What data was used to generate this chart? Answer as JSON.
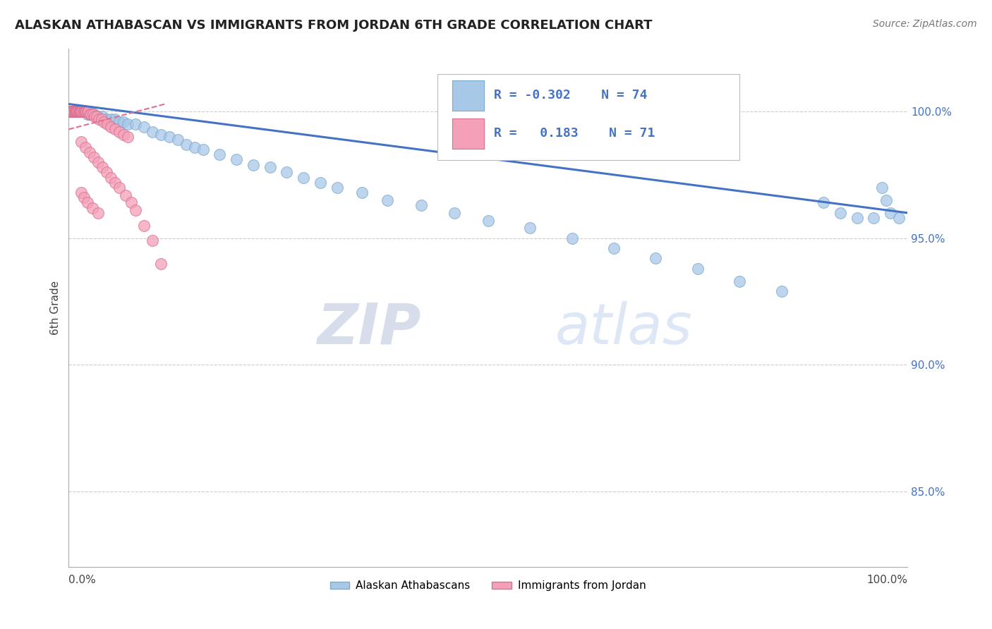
{
  "title": "ALASKAN ATHABASCAN VS IMMIGRANTS FROM JORDAN 6TH GRADE CORRELATION CHART",
  "source": "Source: ZipAtlas.com",
  "ylabel": "6th Grade",
  "ytick_labels": [
    "85.0%",
    "90.0%",
    "95.0%",
    "100.0%"
  ],
  "ytick_values": [
    0.85,
    0.9,
    0.95,
    1.0
  ],
  "xlim": [
    0.0,
    1.0
  ],
  "ylim": [
    0.82,
    1.025
  ],
  "legend_entries": [
    {
      "label": "Alaskan Athabascans",
      "color": "#a8c8e8"
    },
    {
      "label": "Immigrants from Jordan",
      "color": "#f4a0b8"
    }
  ],
  "blue_scatter_x": [
    0.001,
    0.002,
    0.003,
    0.003,
    0.004,
    0.004,
    0.005,
    0.005,
    0.006,
    0.006,
    0.007,
    0.007,
    0.008,
    0.008,
    0.009,
    0.01,
    0.01,
    0.011,
    0.012,
    0.013,
    0.014,
    0.015,
    0.016,
    0.018,
    0.02,
    0.022,
    0.025,
    0.028,
    0.03,
    0.035,
    0.04,
    0.045,
    0.05,
    0.055,
    0.06,
    0.065,
    0.07,
    0.08,
    0.09,
    0.1,
    0.11,
    0.12,
    0.13,
    0.14,
    0.15,
    0.16,
    0.18,
    0.2,
    0.22,
    0.24,
    0.26,
    0.28,
    0.3,
    0.32,
    0.35,
    0.38,
    0.42,
    0.46,
    0.5,
    0.55,
    0.6,
    0.65,
    0.7,
    0.75,
    0.8,
    0.85,
    0.9,
    0.92,
    0.94,
    0.96,
    0.97,
    0.975,
    0.98,
    0.99
  ],
  "blue_scatter_y": [
    1.0,
    1.0,
    1.0,
    1.0,
    1.0,
    1.0,
    1.0,
    1.0,
    1.0,
    1.0,
    1.0,
    1.0,
    1.0,
    1.0,
    1.0,
    1.0,
    1.0,
    1.0,
    1.0,
    1.0,
    1.0,
    1.0,
    1.0,
    1.0,
    1.0,
    0.999,
    0.999,
    0.999,
    0.999,
    0.998,
    0.998,
    0.997,
    0.997,
    0.997,
    0.996,
    0.996,
    0.995,
    0.995,
    0.994,
    0.992,
    0.991,
    0.99,
    0.989,
    0.987,
    0.986,
    0.985,
    0.983,
    0.981,
    0.979,
    0.978,
    0.976,
    0.974,
    0.972,
    0.97,
    0.968,
    0.965,
    0.963,
    0.96,
    0.957,
    0.954,
    0.95,
    0.946,
    0.942,
    0.938,
    0.933,
    0.929,
    0.964,
    0.96,
    0.958,
    0.958,
    0.97,
    0.965,
    0.96,
    0.958
  ],
  "pink_scatter_x": [
    0.001,
    0.002,
    0.002,
    0.003,
    0.003,
    0.004,
    0.004,
    0.005,
    0.005,
    0.006,
    0.006,
    0.007,
    0.007,
    0.008,
    0.008,
    0.009,
    0.009,
    0.01,
    0.01,
    0.011,
    0.011,
    0.012,
    0.012,
    0.013,
    0.013,
    0.014,
    0.015,
    0.015,
    0.016,
    0.017,
    0.018,
    0.019,
    0.02,
    0.021,
    0.022,
    0.023,
    0.025,
    0.027,
    0.029,
    0.031,
    0.033,
    0.036,
    0.039,
    0.042,
    0.046,
    0.05,
    0.055,
    0.06,
    0.065,
    0.07,
    0.015,
    0.02,
    0.025,
    0.03,
    0.035,
    0.04,
    0.045,
    0.05,
    0.055,
    0.06,
    0.068,
    0.075,
    0.08,
    0.09,
    0.1,
    0.11,
    0.015,
    0.018,
    0.022,
    0.028,
    0.035
  ],
  "pink_scatter_y": [
    1.0,
    1.0,
    1.0,
    1.0,
    1.0,
    1.0,
    1.0,
    1.0,
    1.0,
    1.0,
    1.0,
    1.0,
    1.0,
    1.0,
    1.0,
    1.0,
    1.0,
    1.0,
    1.0,
    1.0,
    1.0,
    1.0,
    1.0,
    1.0,
    1.0,
    1.0,
    1.0,
    1.0,
    1.0,
    1.0,
    1.0,
    1.0,
    1.0,
    1.0,
    1.0,
    1.0,
    0.999,
    0.999,
    0.999,
    0.998,
    0.998,
    0.997,
    0.997,
    0.996,
    0.995,
    0.994,
    0.993,
    0.992,
    0.991,
    0.99,
    0.988,
    0.986,
    0.984,
    0.982,
    0.98,
    0.978,
    0.976,
    0.974,
    0.972,
    0.97,
    0.967,
    0.964,
    0.961,
    0.955,
    0.949,
    0.94,
    0.968,
    0.966,
    0.964,
    0.962,
    0.96
  ],
  "blue_line_x": [
    0.0,
    1.0
  ],
  "blue_line_y": [
    1.003,
    0.96
  ],
  "pink_line_x": [
    0.0,
    0.115
  ],
  "pink_line_y": [
    0.993,
    1.003
  ],
  "watermark_zip": "ZIP",
  "watermark_atlas": "atlas",
  "background_color": "#ffffff",
  "grid_color": "#cccccc",
  "scatter_size": 130,
  "blue_color": "#a8c8e8",
  "blue_edge_color": "#7aaace",
  "pink_color": "#f4a0b8",
  "pink_edge_color": "#d97090"
}
